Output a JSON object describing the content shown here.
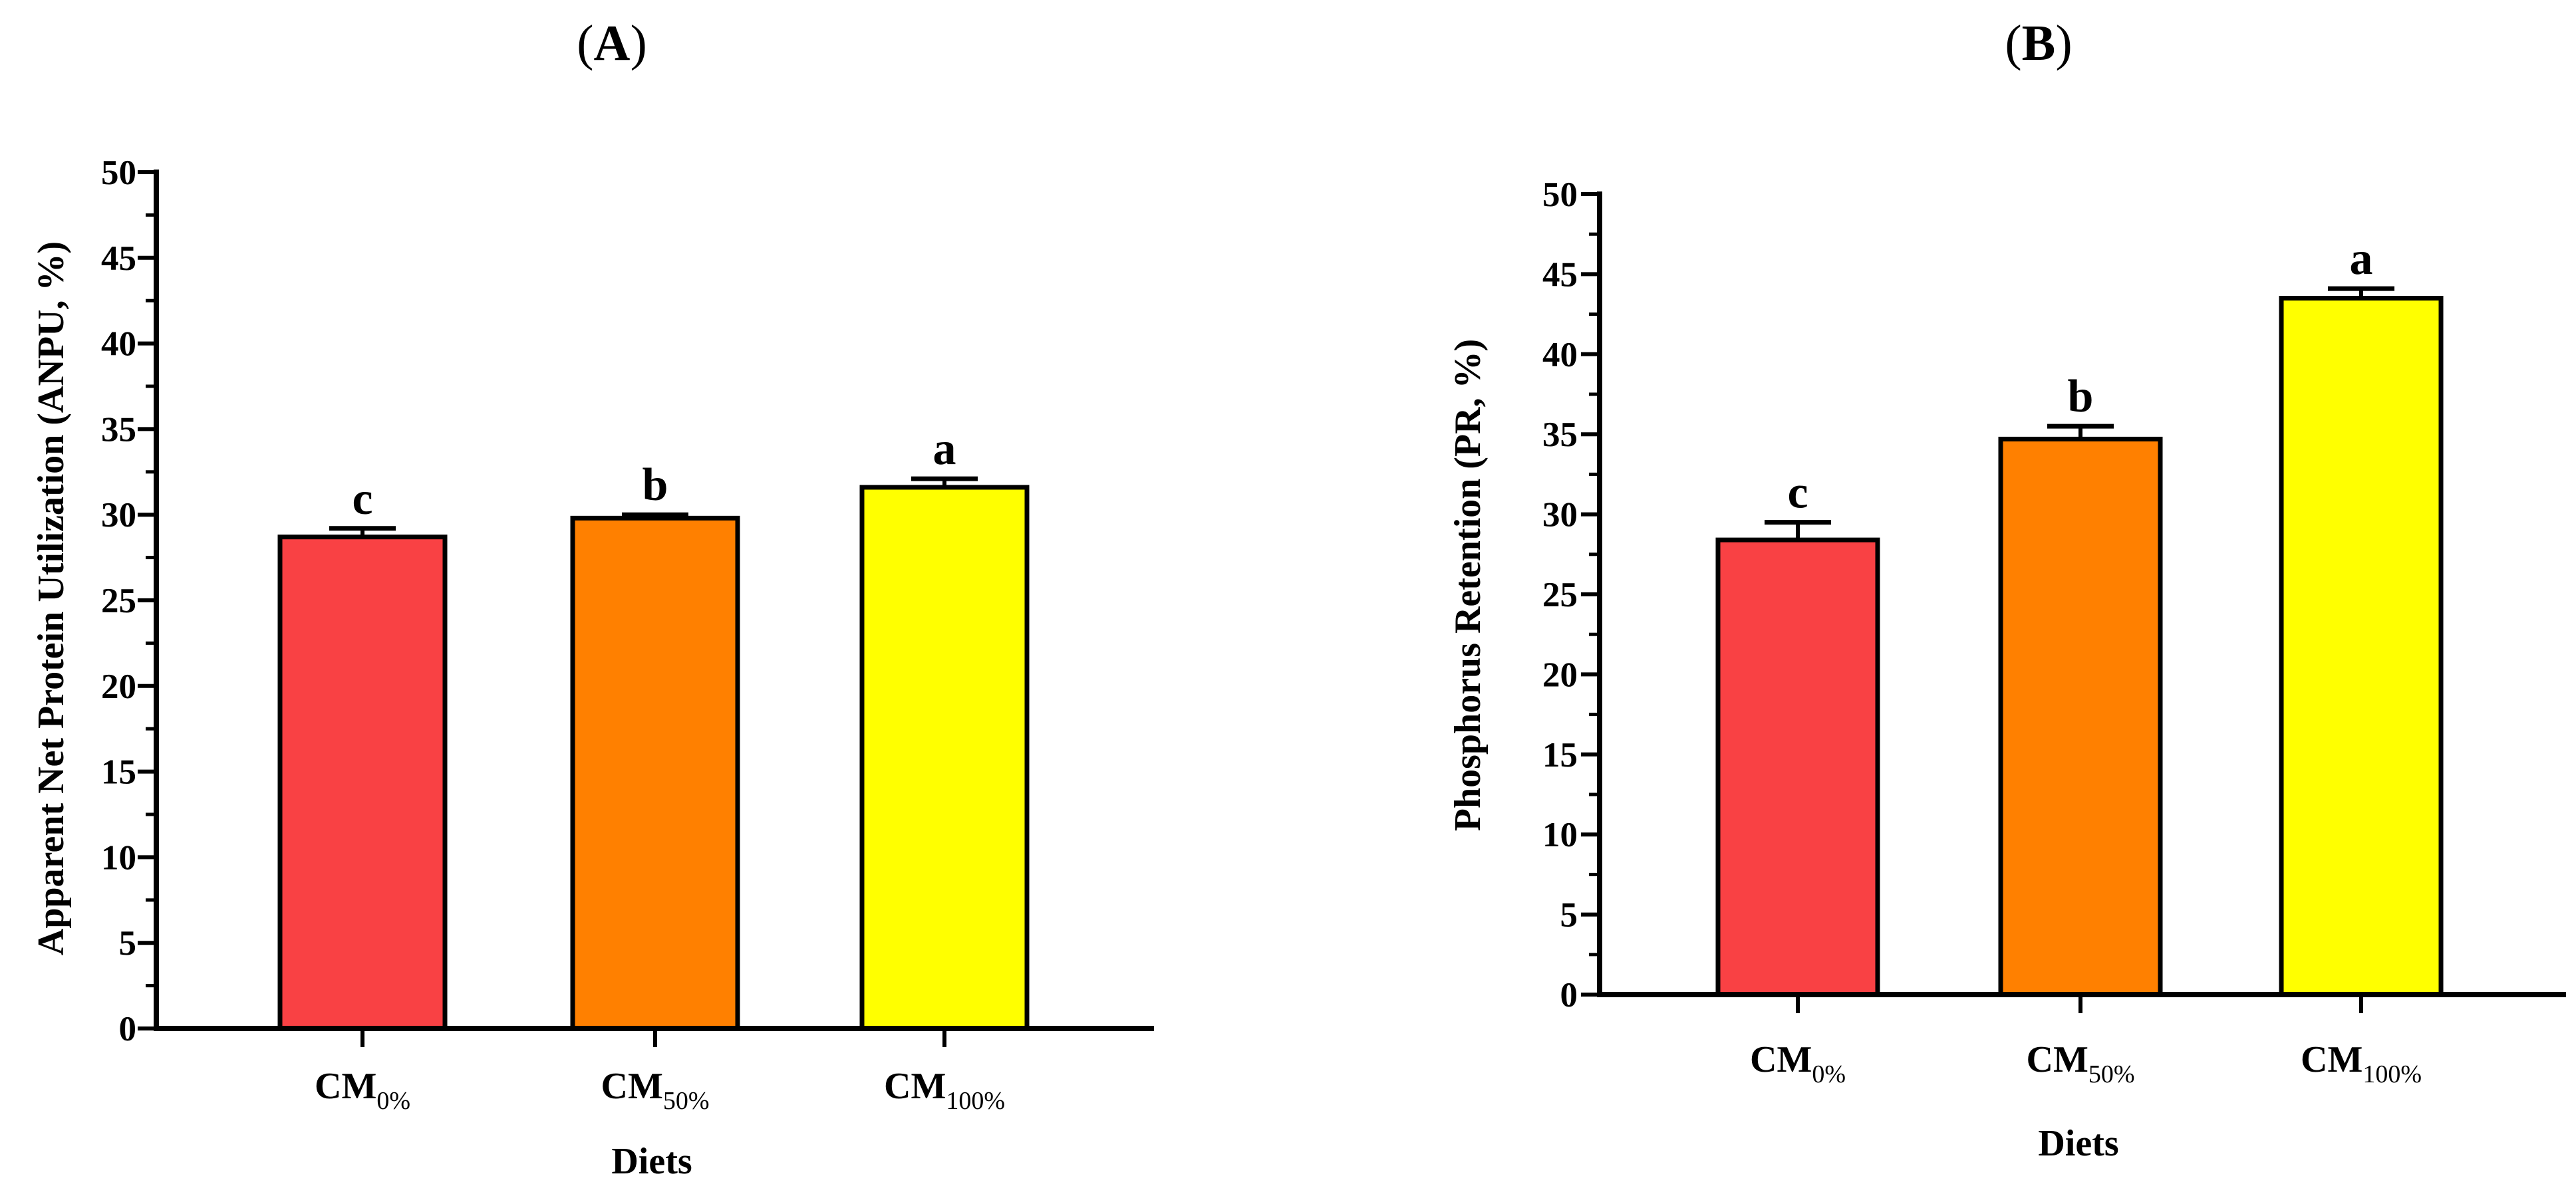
{
  "chart_data": [
    {
      "type": "bar",
      "panel": "A",
      "title": "(A)",
      "xlabel": "Diets",
      "ylabel": "Apparent Net Protein Utilization (ANPU, %)",
      "ylim": [
        0,
        50
      ],
      "ytick_step": 5,
      "yticks": [
        "0",
        "5",
        "10",
        "15",
        "20",
        "25",
        "30",
        "35",
        "40",
        "45",
        "50"
      ],
      "categories": [
        {
          "base": "CM",
          "sub": "0%"
        },
        {
          "base": "CM",
          "sub": "50%"
        },
        {
          "base": "CM",
          "sub": "100%"
        }
      ],
      "values": [
        28.7,
        29.8,
        31.6
      ],
      "errors": [
        0.5,
        0.2,
        0.5
      ],
      "significance": [
        "c",
        "b",
        "a"
      ],
      "colors": [
        "#F94144",
        "#FF8000",
        "#FFFF00"
      ]
    },
    {
      "type": "bar",
      "panel": "B",
      "title": "(B)",
      "xlabel": "Diets",
      "ylabel": "Phosphorus Retention (PR, %)",
      "ylim": [
        0,
        50
      ],
      "ytick_step": 5,
      "yticks": [
        "0",
        "5",
        "10",
        "15",
        "20",
        "25",
        "30",
        "35",
        "40",
        "45",
        "50"
      ],
      "categories": [
        {
          "base": "CM",
          "sub": "0%"
        },
        {
          "base": "CM",
          "sub": "50%"
        },
        {
          "base": "CM",
          "sub": "100%"
        }
      ],
      "values": [
        28.4,
        34.7,
        43.5
      ],
      "errors": [
        1.1,
        0.8,
        0.6
      ],
      "significance": [
        "c",
        "b",
        "a"
      ],
      "colors": [
        "#F94144",
        "#FF8000",
        "#FFFF00"
      ]
    }
  ]
}
